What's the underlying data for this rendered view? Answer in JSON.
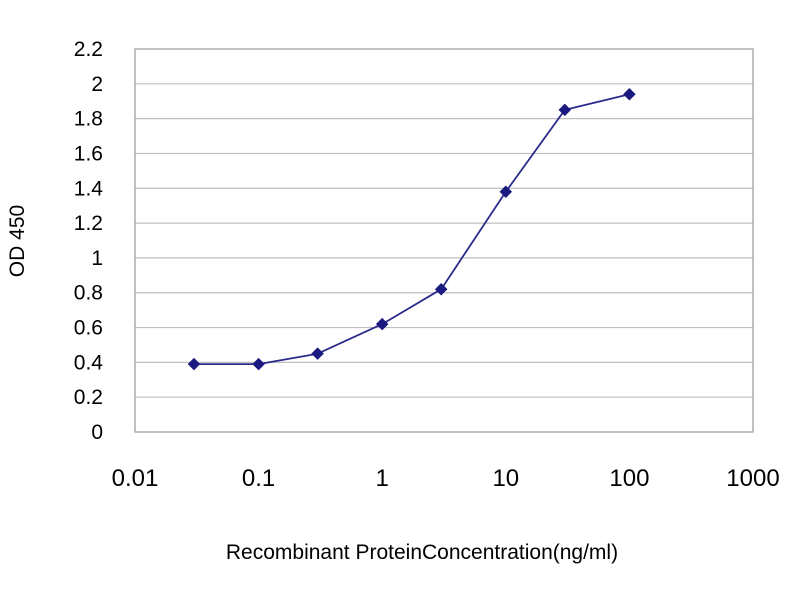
{
  "chart_data": {
    "type": "line",
    "title": "",
    "xlabel": "Recombinant ProteinConcentration(ng/ml)",
    "ylabel": "OD 450",
    "x_scale": "log",
    "xlim": [
      0.01,
      1000
    ],
    "ylim": [
      0,
      2.2
    ],
    "x_ticks": [
      "0.01",
      "0.1",
      "1",
      "10",
      "100",
      "1000"
    ],
    "y_ticks": [
      "0",
      "0.2",
      "0.4",
      "0.6",
      "0.8",
      "1",
      "1.2",
      "1.4",
      "1.6",
      "1.8",
      "2",
      "2.2"
    ],
    "grid": "horizontal",
    "legend": "none",
    "series": [
      {
        "x": [
          0.03,
          0.1,
          0.3,
          1,
          3,
          10,
          30,
          100
        ],
        "y": [
          0.39,
          0.39,
          0.45,
          0.62,
          0.82,
          1.38,
          1.85,
          1.94
        ]
      }
    ],
    "colors": {
      "line": "#2b2b8c",
      "marker": "#1a1a80",
      "grid": "#bfbfbf",
      "frame": "#9a9a9a"
    }
  }
}
